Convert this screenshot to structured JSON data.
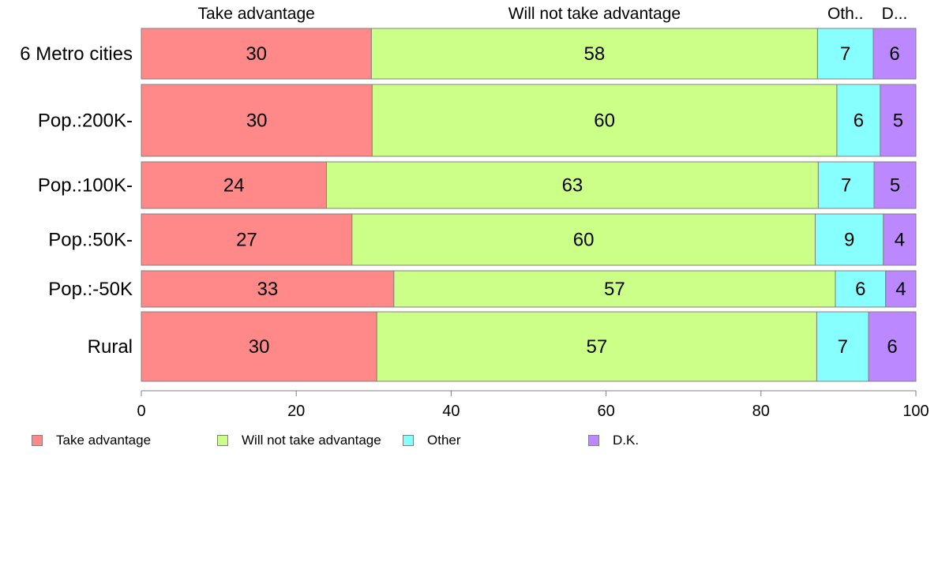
{
  "chart_data": {
    "type": "bar",
    "orientation": "horizontal",
    "stacked": true,
    "categories": [
      "6 Metro cities",
      "Pop.:200K-",
      "Pop.:100K-",
      "Pop.:50K-",
      "Pop.:-50K",
      "Rural"
    ],
    "series": [
      {
        "name": "Take advantage",
        "values": [
          30,
          30,
          24,
          27,
          33,
          30
        ],
        "color": "#ff8888"
      },
      {
        "name": "Will not take advantage",
        "values": [
          58,
          60,
          63,
          60,
          57,
          57
        ],
        "color": "#ccff88"
      },
      {
        "name": "Other",
        "values": [
          7,
          6,
          7,
          9,
          6,
          7
        ],
        "color": "#88ffff"
      },
      {
        "name": "D.K.",
        "values": [
          6,
          5,
          5,
          4,
          4,
          6
        ],
        "color": "#bb88ff"
      }
    ],
    "segment_ends": [
      [
        29.7,
        87.3,
        94.5,
        100
      ],
      [
        29.8,
        89.8,
        95.4,
        100
      ],
      [
        23.9,
        87.4,
        94.6,
        100
      ],
      [
        27.2,
        87.0,
        95.8,
        100
      ],
      [
        32.6,
        89.6,
        96.1,
        100
      ],
      [
        30.4,
        87.2,
        93.9,
        100
      ]
    ],
    "top_labels": [
      "Take advantage",
      "Will not take advantage",
      "Oth..",
      "D..."
    ],
    "xlim": [
      0,
      100
    ],
    "xticks": [
      0,
      20,
      40,
      60,
      80,
      100
    ],
    "grid": false,
    "legend_position": "bottom"
  }
}
